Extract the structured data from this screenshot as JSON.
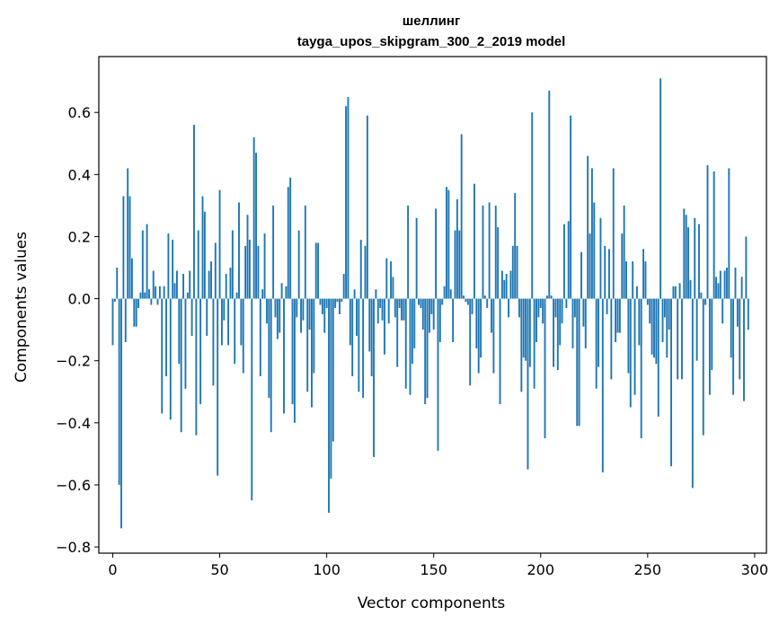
{
  "chart_data": {
    "type": "bar",
    "title_line1": "шеллинг",
    "title_line2": "tayga_upos_skipgram_300_2_2019 model",
    "xlabel": "Vector components",
    "ylabel": "Components values",
    "xlim": [
      -6.5,
      305.5
    ],
    "ylim": [
      -0.82,
      0.78
    ],
    "xticks": [
      0,
      50,
      100,
      150,
      200,
      250,
      300
    ],
    "xtick_labels": [
      "0",
      "50",
      "100",
      "150",
      "200",
      "250",
      "300"
    ],
    "yticks": [
      -0.8,
      -0.6,
      -0.4,
      -0.2,
      0.0,
      0.2,
      0.4,
      0.6
    ],
    "ytick_labels": [
      "−0.8",
      "−0.6",
      "−0.4",
      "−0.2",
      "0.0",
      "0.2",
      "0.4",
      "0.6"
    ],
    "bar_color": "#1f77b4",
    "values": [
      -0.15,
      -0.01,
      0.1,
      -0.6,
      -0.74,
      0.33,
      -0.14,
      0.42,
      0.33,
      0.13,
      -0.09,
      -0.09,
      -0.03,
      0.02,
      0.22,
      0.02,
      0.24,
      0.03,
      -0.02,
      0.09,
      0.04,
      -0.02,
      0.04,
      -0.37,
      0.04,
      -0.25,
      0.21,
      -0.39,
      0.19,
      0.05,
      0.09,
      -0.21,
      -0.43,
      0.08,
      -0.29,
      0.02,
      0.09,
      -0.12,
      0.56,
      -0.44,
      0.22,
      -0.34,
      0.33,
      0.28,
      -0.12,
      0.09,
      0.12,
      -0.28,
      0.18,
      -0.57,
      0.35,
      -0.15,
      -0.07,
      0.08,
      -0.15,
      0.1,
      0.22,
      -0.21,
      0.02,
      0.31,
      -0.15,
      -0.24,
      0.17,
      0.27,
      0.19,
      -0.65,
      0.52,
      0.47,
      0.17,
      -0.25,
      0.03,
      0.21,
      -0.08,
      -0.32,
      -0.43,
      0.3,
      -0.06,
      -0.13,
      -0.11,
      0.05,
      -0.37,
      0.04,
      0.36,
      0.39,
      -0.34,
      -0.4,
      -0.06,
      0.22,
      -0.11,
      -0.07,
      0.3,
      -0.3,
      -0.1,
      -0.35,
      -0.24,
      0.18,
      0.18,
      -0.02,
      -0.05,
      -0.11,
      -0.03,
      -0.69,
      -0.58,
      -0.46,
      -0.03,
      -0.01,
      -0.05,
      -0.01,
      0.08,
      0.62,
      0.65,
      -0.15,
      -0.25,
      0.03,
      -0.12,
      -0.3,
      0.19,
      -0.32,
      0.17,
      0.59,
      -0.17,
      -0.25,
      -0.51,
      0.03,
      -0.08,
      -0.03,
      -0.07,
      -0.18,
      0.13,
      -0.08,
      0.12,
      0.07,
      -0.06,
      -0.22,
      -0.03,
      -0.07,
      -0.07,
      -0.29,
      0.3,
      -0.31,
      -0.21,
      -0.16,
      0.26,
      -0.02,
      -0.03,
      -0.1,
      -0.34,
      -0.32,
      -0.11,
      -0.05,
      -0.1,
      0.29,
      -0.49,
      -0.14,
      -0.02,
      0.04,
      0.36,
      0.35,
      0.03,
      -0.14,
      0.22,
      0.32,
      0.22,
      0.53,
      0.01,
      -0.01,
      -0.02,
      -0.28,
      -0.05,
      0.37,
      -0.16,
      -0.24,
      -0.19,
      0.3,
      0.01,
      -0.03,
      0.31,
      -0.11,
      -0.24,
      0.3,
      0.23,
      -0.34,
      0.09,
      0.06,
      0.08,
      -0.06,
      0.09,
      0.17,
      0.34,
      0.17,
      -0.06,
      -0.3,
      -0.19,
      -0.2,
      -0.55,
      -0.22,
      0.6,
      -0.29,
      -0.14,
      -0.06,
      -0.03,
      -0.08,
      -0.45,
      0.01,
      0.67,
      0.01,
      -0.22,
      -0.06,
      -0.23,
      -0.15,
      -0.08,
      0.24,
      -0.03,
      0.25,
      0.59,
      -0.16,
      -0.06,
      -0.41,
      -0.41,
      0.15,
      -0.09,
      -0.16,
      0.46,
      0.21,
      0.42,
      0.31,
      -0.29,
      -0.22,
      0.26,
      -0.56,
      0.17,
      -0.05,
      0.16,
      -0.26,
      0.42,
      -0.14,
      -0.11,
      -0.11,
      0.21,
      0.3,
      0.12,
      -0.24,
      -0.35,
      0.12,
      -0.31,
      0.04,
      -0.15,
      -0.45,
      0.16,
      0.12,
      -0.02,
      -0.08,
      -0.18,
      -0.19,
      -0.21,
      -0.38,
      0.71,
      -0.14,
      -0.06,
      -0.19,
      -0.1,
      -0.54,
      0.04,
      0.04,
      -0.26,
      0.05,
      -0.26,
      0.29,
      0.27,
      0.23,
      0.06,
      -0.61,
      0.26,
      -0.2,
      0.24,
      0.02,
      -0.44,
      -0.02,
      0.43,
      -0.31,
      -0.23,
      0.41,
      0.07,
      0.05,
      0.09,
      -0.08,
      0.09,
      0.1,
      0.42,
      -0.19,
      -0.31,
      0.1,
      -0.09,
      -0.26,
      0.07,
      -0.33,
      0.2,
      -0.1
    ]
  }
}
